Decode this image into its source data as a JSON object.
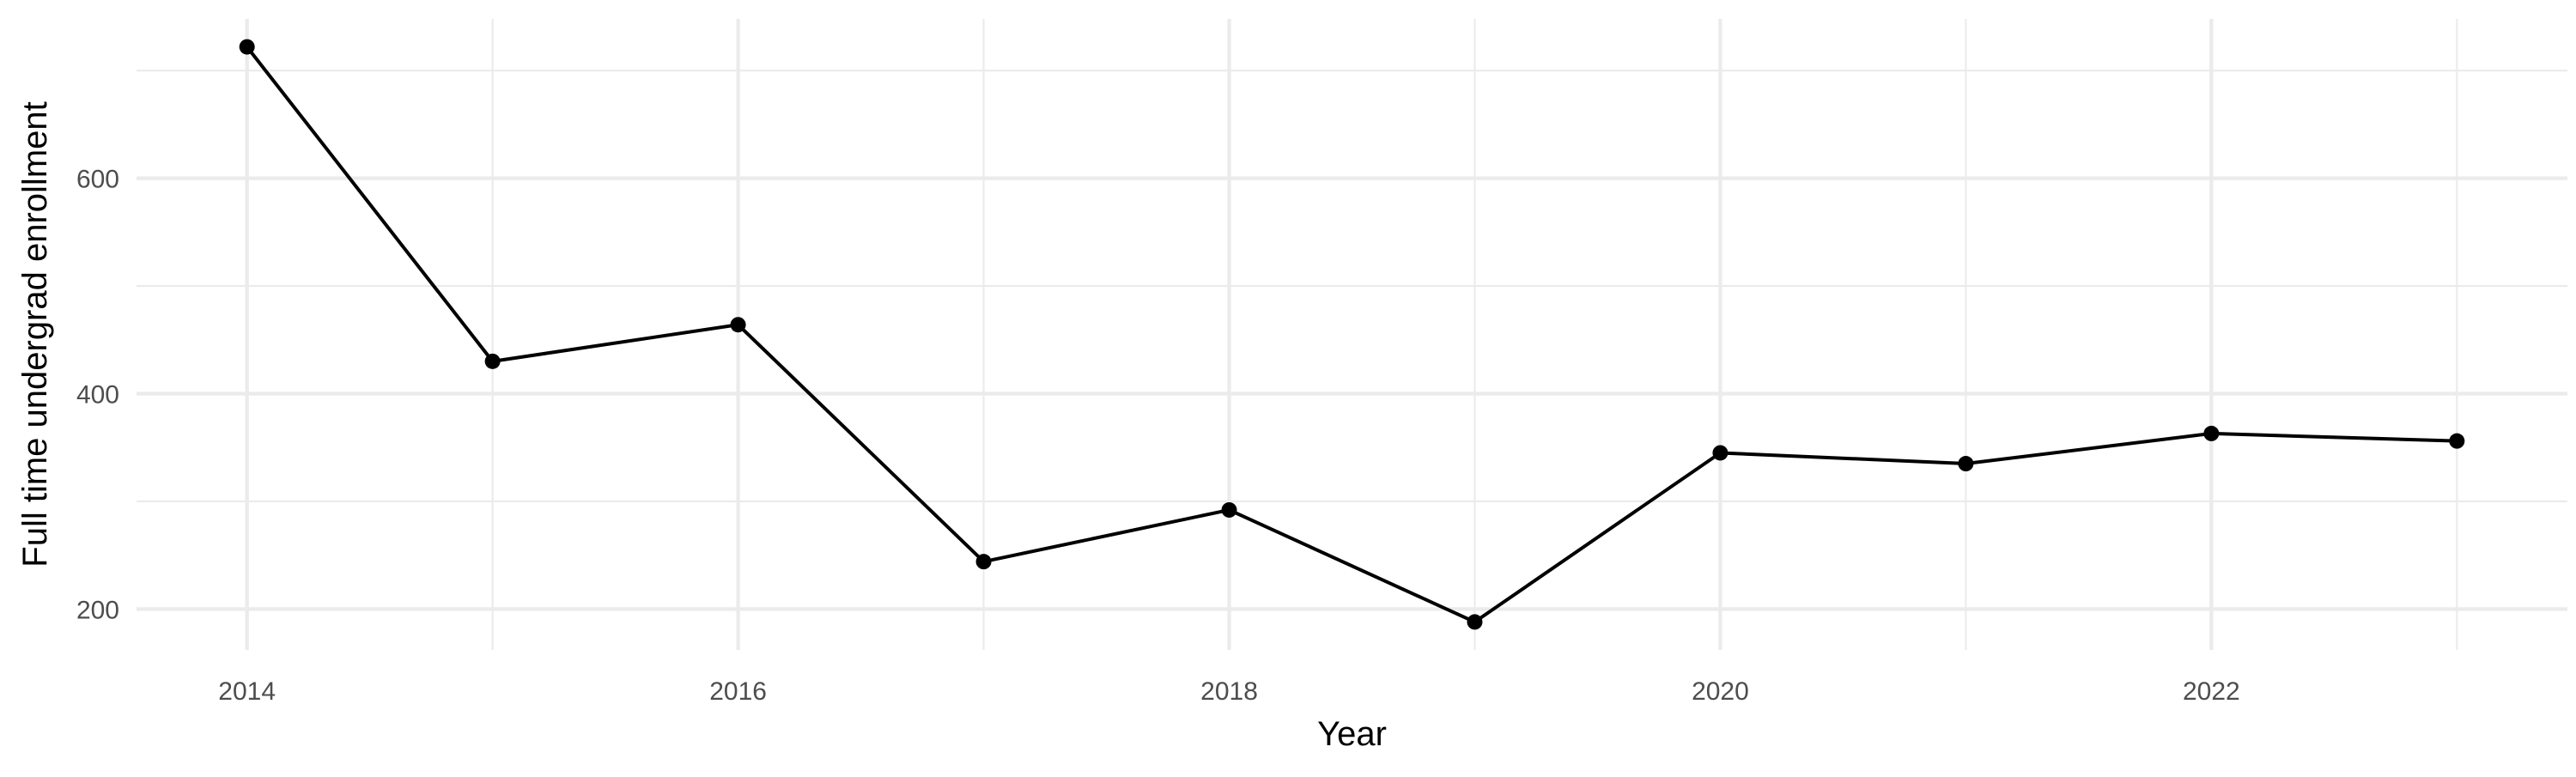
{
  "chart_data": {
    "type": "line",
    "title": "",
    "xlabel": "Year",
    "ylabel": "Full time undergrad enrollment",
    "x": [
      2014,
      2015,
      2016,
      2017,
      2018,
      2019,
      2020,
      2021,
      2022,
      2023
    ],
    "series": [
      {
        "values": [
          722,
          430,
          464,
          244,
          292,
          188,
          345,
          335,
          363,
          356
        ],
        "color": "#000000"
      }
    ],
    "x_ticks": [
      2014,
      2016,
      2018,
      2020,
      2022
    ],
    "x_tick_labels": [
      "2014",
      "2016",
      "2018",
      "2020",
      "2022"
    ],
    "y_ticks": [
      200,
      400,
      600
    ],
    "y_tick_labels": [
      "200",
      "400",
      "600"
    ],
    "xlim": [
      2013.55,
      2023.45
    ],
    "ylim": [
      162,
      748
    ],
    "grid": true,
    "legend": "none"
  }
}
